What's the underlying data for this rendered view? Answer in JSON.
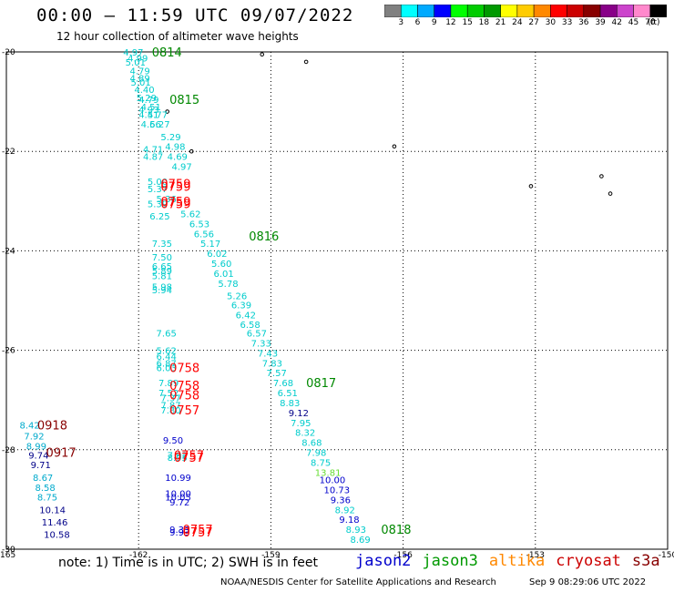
{
  "header": {
    "title": "00:00 – 11:59 UTC 09/07/2022",
    "subtitle": "12 hour collection of altimeter wave heights",
    "unit": "(ft)"
  },
  "colorbar": {
    "colors": [
      "#808080",
      "#00ffff",
      "#00aaff",
      "#0000ff",
      "#00ff00",
      "#00cc00",
      "#009900",
      "#ffff00",
      "#ffcc00",
      "#ff8800",
      "#ff0000",
      "#cc0000",
      "#880000",
      "#880088",
      "#cc44cc",
      "#ff88cc",
      "#000000"
    ],
    "ticks": [
      "3",
      "6",
      "9",
      "12",
      "15",
      "18",
      "21",
      "24",
      "27",
      "30",
      "33",
      "36",
      "39",
      "42",
      "45",
      "70"
    ]
  },
  "note": "note:  1) Time is in UTC;  2) SWH is in feet",
  "legend": [
    {
      "label": "jason2",
      "color": "#0000cc"
    },
    {
      "label": "jason3",
      "color": "#009900"
    },
    {
      "label": "altika",
      "color": "#ff8800"
    },
    {
      "label": "cryosat",
      "color": "#cc0000"
    },
    {
      "label": "s3a",
      "color": "#880000"
    }
  ],
  "footer": {
    "org": "NOAA/NESDIS Center for Satellite Applications and Research",
    "timestamp": "Sep  9 08:29:06 UTC 2022"
  },
  "chart_data": {
    "type": "scatter",
    "xlim": [
      -165,
      -150
    ],
    "ylim": [
      -30,
      -20
    ],
    "xticks": [
      "-165",
      "-162",
      "-159",
      "-156",
      "-153",
      "-150"
    ],
    "yticks": [
      "-20",
      "-22",
      "-24",
      "-26",
      "-28",
      "-30"
    ],
    "grid": true,
    "time_labels": [
      {
        "text": "0814",
        "lon": -161.7,
        "lat": -20.0,
        "color": "#008800"
      },
      {
        "text": "0815",
        "lon": -161.3,
        "lat": -20.95,
        "color": "#008800"
      },
      {
        "text": "0816",
        "lon": -159.5,
        "lat": -23.7,
        "color": "#008800"
      },
      {
        "text": "0817",
        "lon": -158.2,
        "lat": -26.65,
        "color": "#008800"
      },
      {
        "text": "0818",
        "lon": -156.5,
        "lat": -29.6,
        "color": "#008800"
      },
      {
        "text": "0759",
        "lon": -161.5,
        "lat": -22.65,
        "color": "#ff0000"
      },
      {
        "text": "0759",
        "lon": -161.5,
        "lat": -22.7,
        "color": "#ff0000"
      },
      {
        "text": "0759",
        "lon": -161.5,
        "lat": -23.0,
        "color": "#ff0000"
      },
      {
        "text": "0759",
        "lon": -161.5,
        "lat": -23.05,
        "color": "#ff0000"
      },
      {
        "text": "0758",
        "lon": -161.3,
        "lat": -26.35,
        "color": "#ff0000"
      },
      {
        "text": "0758",
        "lon": -161.3,
        "lat": -26.7,
        "color": "#ff0000"
      },
      {
        "text": "0758",
        "lon": -161.3,
        "lat": -26.9,
        "color": "#ff0000"
      },
      {
        "text": "0757",
        "lon": -161.3,
        "lat": -27.2,
        "color": "#ff0000"
      },
      {
        "text": "0757",
        "lon": -161.2,
        "lat": -28.1,
        "color": "#ff0000"
      },
      {
        "text": "0757",
        "lon": -161.2,
        "lat": -28.15,
        "color": "#ff0000"
      },
      {
        "text": "0757",
        "lon": -161.0,
        "lat": -29.6,
        "color": "#ff0000"
      },
      {
        "text": "0757",
        "lon": -161.0,
        "lat": -29.65,
        "color": "#ff0000"
      },
      {
        "text": "0918",
        "lon": -164.3,
        "lat": -27.5,
        "color": "#880000"
      },
      {
        "text": "0917",
        "lon": -164.1,
        "lat": -28.05,
        "color": "#880000"
      }
    ],
    "values": [
      {
        "text": "4.97",
        "lon": -162.35,
        "lat": -20.0,
        "color": "#00cccc"
      },
      {
        "text": "5.01",
        "lon": -162.3,
        "lat": -20.2,
        "color": "#00cccc"
      },
      {
        "text": "4.99",
        "lon": -162.25,
        "lat": -20.12,
        "color": "#00cccc"
      },
      {
        "text": "4.79",
        "lon": -162.2,
        "lat": -20.38,
        "color": "#00cccc"
      },
      {
        "text": "4.89",
        "lon": -162.2,
        "lat": -20.52,
        "color": "#00cccc"
      },
      {
        "text": "5.01",
        "lon": -162.18,
        "lat": -20.6,
        "color": "#00cccc"
      },
      {
        "text": "4.40",
        "lon": -162.1,
        "lat": -20.75,
        "color": "#00cccc"
      },
      {
        "text": "4.79",
        "lon": -162.0,
        "lat": -20.95,
        "color": "#00cccc"
      },
      {
        "text": "5.29",
        "lon": -162.05,
        "lat": -20.92,
        "color": "#00cccc"
      },
      {
        "text": "4.51",
        "lon": -161.95,
        "lat": -21.1,
        "color": "#00cccc"
      },
      {
        "text": "4.93",
        "lon": -162.0,
        "lat": -21.15,
        "color": "#00cccc"
      },
      {
        "text": "4.77",
        "lon": -161.8,
        "lat": -21.25,
        "color": "#00cccc"
      },
      {
        "text": "4.51",
        "lon": -162.0,
        "lat": -21.25,
        "color": "#00cccc"
      },
      {
        "text": "4.66",
        "lon": -161.95,
        "lat": -21.45,
        "color": "#00cccc"
      },
      {
        "text": "5.27",
        "lon": -161.75,
        "lat": -21.45,
        "color": "#00cccc"
      },
      {
        "text": "5.29",
        "lon": -161.5,
        "lat": -21.7,
        "color": "#00cccc"
      },
      {
        "text": "4.98",
        "lon": -161.4,
        "lat": -21.9,
        "color": "#00cccc"
      },
      {
        "text": "4.71",
        "lon": -161.9,
        "lat": -21.95,
        "color": "#00cccc"
      },
      {
        "text": "4.69",
        "lon": -161.35,
        "lat": -22.1,
        "color": "#00cccc"
      },
      {
        "text": "4.87",
        "lon": -161.9,
        "lat": -22.1,
        "color": "#00cccc"
      },
      {
        "text": "4.97",
        "lon": -161.25,
        "lat": -22.3,
        "color": "#00cccc"
      },
      {
        "text": "5.00",
        "lon": -161.8,
        "lat": -22.6,
        "color": "#00cccc"
      },
      {
        "text": "5.37",
        "lon": -161.8,
        "lat": -22.75,
        "color": "#00cccc"
      },
      {
        "text": "5.36",
        "lon": -161.6,
        "lat": -22.95,
        "color": "#00cccc"
      },
      {
        "text": "5.39",
        "lon": -161.8,
        "lat": -23.05,
        "color": "#00cccc"
      },
      {
        "text": "5.62",
        "lon": -161.05,
        "lat": -23.25,
        "color": "#00cccc"
      },
      {
        "text": "6.25",
        "lon": -161.75,
        "lat": -23.3,
        "color": "#00cccc"
      },
      {
        "text": "6.53",
        "lon": -160.85,
        "lat": -23.45,
        "color": "#00cccc"
      },
      {
        "text": "6.56",
        "lon": -160.75,
        "lat": -23.65,
        "color": "#00cccc"
      },
      {
        "text": "7.35",
        "lon": -161.7,
        "lat": -23.85,
        "color": "#00cccc"
      },
      {
        "text": "5.17",
        "lon": -160.6,
        "lat": -23.85,
        "color": "#00cccc"
      },
      {
        "text": "6.02",
        "lon": -160.45,
        "lat": -24.05,
        "color": "#00cccc"
      },
      {
        "text": "7.50",
        "lon": -161.7,
        "lat": -24.12,
        "color": "#00cccc"
      },
      {
        "text": "5.60",
        "lon": -160.35,
        "lat": -24.25,
        "color": "#00cccc"
      },
      {
        "text": "6.65",
        "lon": -161.7,
        "lat": -24.3,
        "color": "#00cccc"
      },
      {
        "text": "5.89",
        "lon": -161.7,
        "lat": -24.4,
        "color": "#00cccc"
      },
      {
        "text": "6.01",
        "lon": -160.3,
        "lat": -24.45,
        "color": "#00cccc"
      },
      {
        "text": "5.81",
        "lon": -161.7,
        "lat": -24.5,
        "color": "#00cccc"
      },
      {
        "text": "5.78",
        "lon": -160.2,
        "lat": -24.65,
        "color": "#00cccc"
      },
      {
        "text": "5.98",
        "lon": -161.7,
        "lat": -24.72,
        "color": "#00cccc"
      },
      {
        "text": "5.94",
        "lon": -161.7,
        "lat": -24.78,
        "color": "#00cccc"
      },
      {
        "text": "5.26",
        "lon": -160.0,
        "lat": -24.9,
        "color": "#00cccc"
      },
      {
        "text": "6.39",
        "lon": -159.9,
        "lat": -25.08,
        "color": "#00cccc"
      },
      {
        "text": "6.42",
        "lon": -159.8,
        "lat": -25.28,
        "color": "#00cccc"
      },
      {
        "text": "6.58",
        "lon": -159.7,
        "lat": -25.48,
        "color": "#00cccc"
      },
      {
        "text": "7.65",
        "lon": -161.6,
        "lat": -25.65,
        "color": "#00cccc"
      },
      {
        "text": "6.57",
        "lon": -159.55,
        "lat": -25.65,
        "color": "#00cccc"
      },
      {
        "text": "7.33",
        "lon": -159.45,
        "lat": -25.85,
        "color": "#00cccc"
      },
      {
        "text": "5.62",
        "lon": -161.6,
        "lat": -26.0,
        "color": "#00cccc"
      },
      {
        "text": "7.43",
        "lon": -159.3,
        "lat": -26.05,
        "color": "#00cccc"
      },
      {
        "text": "6.44",
        "lon": -161.6,
        "lat": -26.12,
        "color": "#00cccc"
      },
      {
        "text": "7.83",
        "lon": -159.2,
        "lat": -26.25,
        "color": "#00cccc"
      },
      {
        "text": "6.87",
        "lon": -161.6,
        "lat": -26.25,
        "color": "#00cccc"
      },
      {
        "text": "6.03",
        "lon": -161.6,
        "lat": -26.35,
        "color": "#00cccc"
      },
      {
        "text": "7.57",
        "lon": -159.1,
        "lat": -26.45,
        "color": "#00cccc"
      },
      {
        "text": "7.89",
        "lon": -161.55,
        "lat": -26.65,
        "color": "#00cccc"
      },
      {
        "text": "7.68",
        "lon": -158.95,
        "lat": -26.65,
        "color": "#00cccc"
      },
      {
        "text": "7.52",
        "lon": -161.55,
        "lat": -26.85,
        "color": "#00cccc"
      },
      {
        "text": "6.51",
        "lon": -158.85,
        "lat": -26.85,
        "color": "#00cccc"
      },
      {
        "text": "7.37",
        "lon": -161.5,
        "lat": -26.95,
        "color": "#00cccc"
      },
      {
        "text": "8.83",
        "lon": -158.8,
        "lat": -27.05,
        "color": "#00cccc"
      },
      {
        "text": "7.87",
        "lon": -161.5,
        "lat": -27.1,
        "color": "#00cccc"
      },
      {
        "text": "7.80",
        "lon": -161.5,
        "lat": -27.2,
        "color": "#00cccc"
      },
      {
        "text": "9.12",
        "lon": -158.6,
        "lat": -27.25,
        "color": "#000088"
      },
      {
        "text": "7.95",
        "lon": -158.55,
        "lat": -27.45,
        "color": "#00cccc"
      },
      {
        "text": "8.32",
        "lon": -158.45,
        "lat": -27.65,
        "color": "#00cccc"
      },
      {
        "text": "9.50",
        "lon": -161.45,
        "lat": -27.8,
        "color": "#0000cc"
      },
      {
        "text": "8.68",
        "lon": -158.3,
        "lat": -27.85,
        "color": "#00cccc"
      },
      {
        "text": "7.98",
        "lon": -158.2,
        "lat": -28.05,
        "color": "#00cccc"
      },
      {
        "text": "7.92",
        "lon": -161.35,
        "lat": -28.1,
        "color": "#00cccc"
      },
      {
        "text": "8.95",
        "lon": -161.35,
        "lat": -28.15,
        "color": "#00cccc"
      },
      {
        "text": "8.75",
        "lon": -158.1,
        "lat": -28.25,
        "color": "#00cccc"
      },
      {
        "text": "13.81",
        "lon": -158.0,
        "lat": -28.45,
        "color": "#66dd33"
      },
      {
        "text": "10.99",
        "lon": -161.4,
        "lat": -28.55,
        "color": "#0000cc"
      },
      {
        "text": "10.00",
        "lon": -157.9,
        "lat": -28.6,
        "color": "#0000cc"
      },
      {
        "text": "10.73",
        "lon": -157.8,
        "lat": -28.8,
        "color": "#0000cc"
      },
      {
        "text": "10.00",
        "lon": -161.4,
        "lat": -28.87,
        "color": "#0000cc"
      },
      {
        "text": "10.05",
        "lon": -161.4,
        "lat": -28.95,
        "color": "#0000cc"
      },
      {
        "text": "9.36",
        "lon": -157.65,
        "lat": -29.0,
        "color": "#0000cc"
      },
      {
        "text": "9.72",
        "lon": -161.3,
        "lat": -29.05,
        "color": "#0000cc"
      },
      {
        "text": "8.92",
        "lon": -157.55,
        "lat": -29.2,
        "color": "#00cccc"
      },
      {
        "text": "9.18",
        "lon": -157.45,
        "lat": -29.4,
        "color": "#0000cc"
      },
      {
        "text": "9.33",
        "lon": -161.3,
        "lat": -29.6,
        "color": "#0000cc"
      },
      {
        "text": "9.93",
        "lon": -161.3,
        "lat": -29.65,
        "color": "#0000cc"
      },
      {
        "text": "8.93",
        "lon": -157.3,
        "lat": -29.6,
        "color": "#00cccc"
      },
      {
        "text": "8.69",
        "lon": -157.2,
        "lat": -29.8,
        "color": "#00cccc"
      },
      {
        "text": "8.42",
        "lon": -164.7,
        "lat": -27.5,
        "color": "#00aacc"
      },
      {
        "text": "7.92",
        "lon": -164.6,
        "lat": -27.72,
        "color": "#00aacc"
      },
      {
        "text": "8.99",
        "lon": -164.55,
        "lat": -27.92,
        "color": "#00aacc"
      },
      {
        "text": "9.74",
        "lon": -164.5,
        "lat": -28.1,
        "color": "#000088"
      },
      {
        "text": "9.71",
        "lon": -164.45,
        "lat": -28.3,
        "color": "#000088"
      },
      {
        "text": "8.67",
        "lon": -164.4,
        "lat": -28.55,
        "color": "#00aacc"
      },
      {
        "text": "8.58",
        "lon": -164.35,
        "lat": -28.75,
        "color": "#00aacc"
      },
      {
        "text": "8.75",
        "lon": -164.3,
        "lat": -28.95,
        "color": "#00aacc"
      },
      {
        "text": "10.14",
        "lon": -164.25,
        "lat": -29.2,
        "color": "#000088"
      },
      {
        "text": "11.46",
        "lon": -164.2,
        "lat": -29.45,
        "color": "#000088"
      },
      {
        "text": "10.58",
        "lon": -164.15,
        "lat": -29.7,
        "color": "#000088"
      }
    ],
    "islands": [
      {
        "lon": -161.35,
        "lat": -21.2
      },
      {
        "lon": -159.2,
        "lat": -20.05
      },
      {
        "lon": -158.2,
        "lat": -20.2
      },
      {
        "lon": -160.8,
        "lat": -22.0
      },
      {
        "lon": -156.2,
        "lat": -21.9
      },
      {
        "lon": -153.1,
        "lat": -22.7
      },
      {
        "lon": -151.5,
        "lat": -22.5
      },
      {
        "lon": -151.3,
        "lat": -22.85
      }
    ]
  }
}
